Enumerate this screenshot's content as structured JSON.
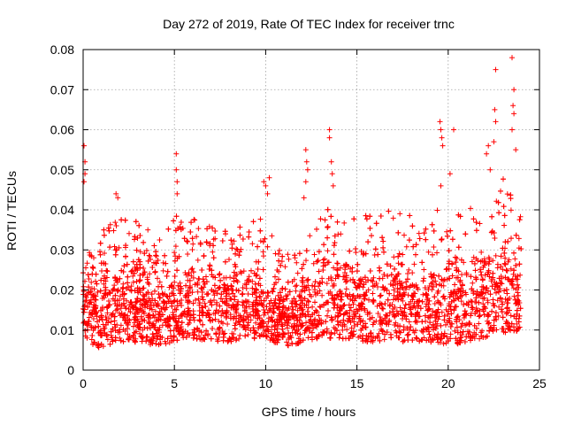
{
  "chart_data": {
    "type": "scatter",
    "title": "Day 272 of 2019, Rate Of TEC Index for receiver trnc",
    "xlabel": "GPS time / hours",
    "ylabel": "ROTI / TECUs",
    "xlim": [
      0,
      25
    ],
    "ylim": [
      0,
      0.08
    ],
    "xticks": [
      0,
      5,
      10,
      15,
      20,
      25
    ],
    "yticks": [
      0,
      0.01,
      0.02,
      0.03,
      0.04,
      0.05,
      0.06,
      0.07,
      0.08
    ],
    "xtick_labels": [
      "0",
      "5",
      "10",
      "15",
      "20",
      "25"
    ],
    "ytick_labels": [
      "0",
      "0.01",
      "0.02",
      "0.03",
      "0.04",
      "0.05",
      "0.06",
      "0.07",
      "0.08"
    ],
    "grid": true,
    "marker": "+",
    "color": "#ff0000",
    "x_range_of_data": [
      0,
      24
    ],
    "envelope": {
      "x": [
        0,
        0.5,
        1,
        2,
        3,
        4,
        5,
        6,
        7,
        8,
        9,
        10,
        11,
        12,
        13,
        14,
        15,
        16,
        17,
        18,
        19,
        20,
        21,
        22,
        23,
        24
      ],
      "base": [
        0.015,
        0.014,
        0.013,
        0.014,
        0.015,
        0.014,
        0.015,
        0.016,
        0.015,
        0.015,
        0.016,
        0.015,
        0.013,
        0.013,
        0.016,
        0.016,
        0.015,
        0.016,
        0.016,
        0.015,
        0.015,
        0.014,
        0.015,
        0.017,
        0.018,
        0.016
      ],
      "low": [
        0.009,
        0.006,
        0.005,
        0.007,
        0.007,
        0.006,
        0.007,
        0.008,
        0.007,
        0.007,
        0.008,
        0.007,
        0.006,
        0.006,
        0.008,
        0.008,
        0.007,
        0.007,
        0.007,
        0.007,
        0.007,
        0.006,
        0.007,
        0.008,
        0.009,
        0.01
      ],
      "high": [
        0.035,
        0.028,
        0.036,
        0.038,
        0.037,
        0.035,
        0.04,
        0.038,
        0.036,
        0.035,
        0.037,
        0.038,
        0.03,
        0.031,
        0.04,
        0.041,
        0.038,
        0.04,
        0.04,
        0.039,
        0.042,
        0.038,
        0.04,
        0.045,
        0.048,
        0.04
      ]
    },
    "n_points": 4200,
    "peaks": [
      {
        "x": 0.05,
        "y": 0.056
      },
      {
        "x": 0.1,
        "y": 0.052
      },
      {
        "x": 0.1,
        "y": 0.049
      },
      {
        "x": 0.05,
        "y": 0.047
      },
      {
        "x": 1.8,
        "y": 0.044
      },
      {
        "x": 1.9,
        "y": 0.043
      },
      {
        "x": 5.1,
        "y": 0.054
      },
      {
        "x": 5.1,
        "y": 0.05
      },
      {
        "x": 5.15,
        "y": 0.047
      },
      {
        "x": 5.15,
        "y": 0.044
      },
      {
        "x": 9.9,
        "y": 0.047
      },
      {
        "x": 10.0,
        "y": 0.046
      },
      {
        "x": 10.1,
        "y": 0.044
      },
      {
        "x": 10.2,
        "y": 0.048
      },
      {
        "x": 12.2,
        "y": 0.055
      },
      {
        "x": 12.25,
        "y": 0.052
      },
      {
        "x": 12.3,
        "y": 0.05
      },
      {
        "x": 12.2,
        "y": 0.047
      },
      {
        "x": 12.1,
        "y": 0.043
      },
      {
        "x": 13.5,
        "y": 0.06
      },
      {
        "x": 13.5,
        "y": 0.058
      },
      {
        "x": 13.6,
        "y": 0.052
      },
      {
        "x": 13.65,
        "y": 0.049
      },
      {
        "x": 13.7,
        "y": 0.046
      },
      {
        "x": 19.55,
        "y": 0.062
      },
      {
        "x": 19.6,
        "y": 0.06
      },
      {
        "x": 19.65,
        "y": 0.058
      },
      {
        "x": 19.7,
        "y": 0.056
      },
      {
        "x": 20.3,
        "y": 0.06
      },
      {
        "x": 20.1,
        "y": 0.049
      },
      {
        "x": 19.6,
        "y": 0.046
      },
      {
        "x": 22.6,
        "y": 0.075
      },
      {
        "x": 22.55,
        "y": 0.065
      },
      {
        "x": 22.6,
        "y": 0.062
      },
      {
        "x": 22.5,
        "y": 0.057
      },
      {
        "x": 23.5,
        "y": 0.078
      },
      {
        "x": 23.6,
        "y": 0.07
      },
      {
        "x": 23.55,
        "y": 0.066
      },
      {
        "x": 23.6,
        "y": 0.064
      },
      {
        "x": 23.5,
        "y": 0.06
      },
      {
        "x": 23.7,
        "y": 0.055
      },
      {
        "x": 22.2,
        "y": 0.056
      },
      {
        "x": 22.1,
        "y": 0.054
      },
      {
        "x": 22.3,
        "y": 0.05
      }
    ]
  }
}
